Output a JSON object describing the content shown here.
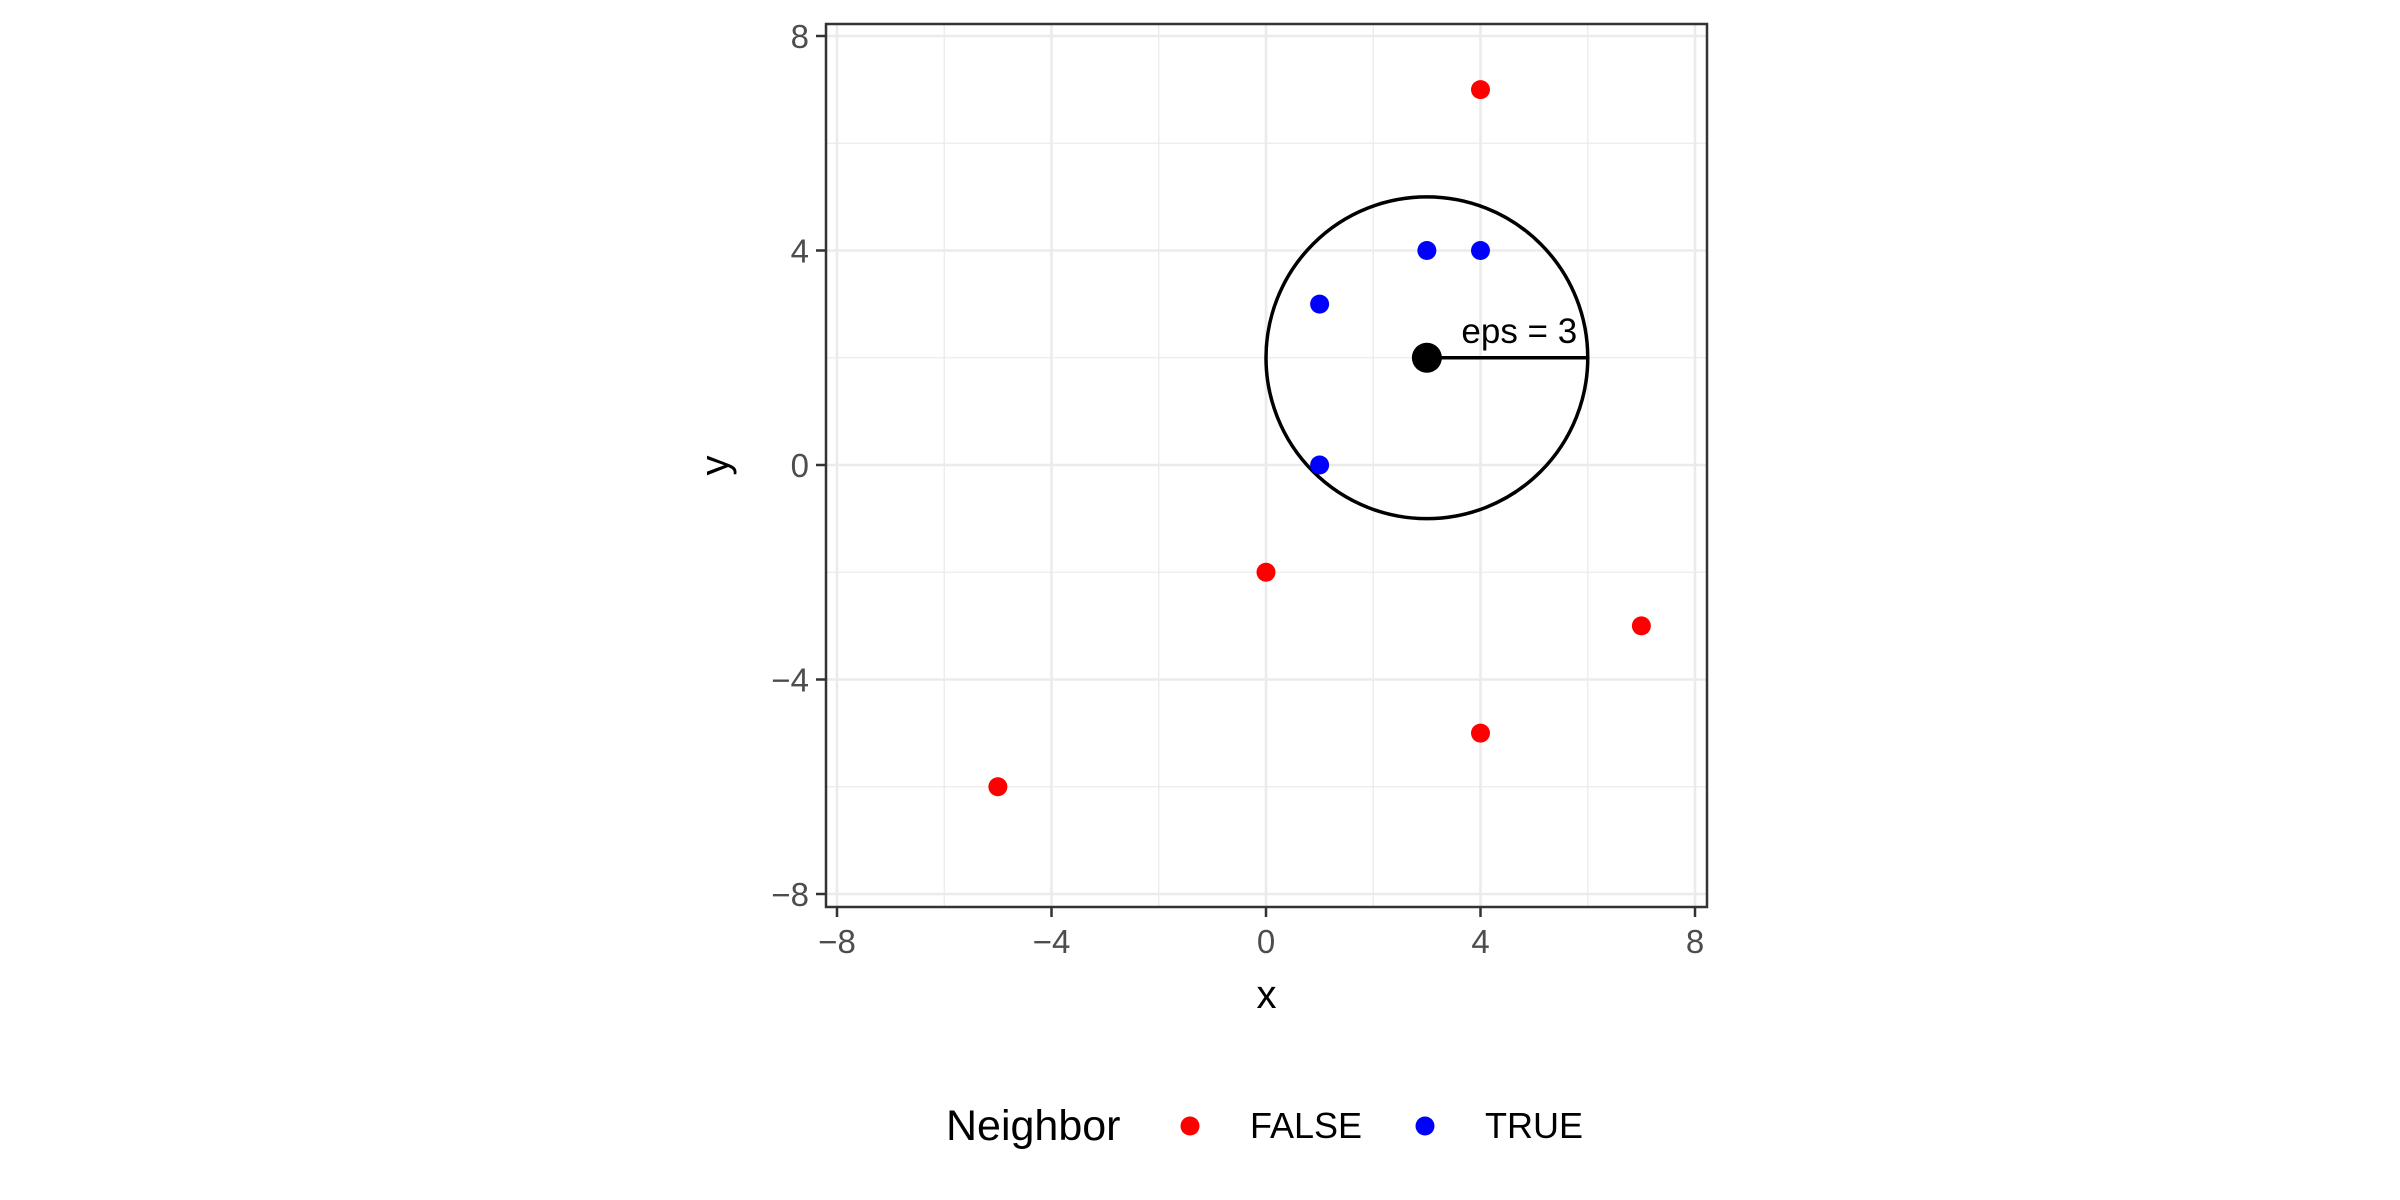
{
  "chart_data": {
    "type": "scatter",
    "xlabel": "x",
    "ylabel": "y",
    "xlim": [
      -8,
      8
    ],
    "ylim": [
      -8,
      8
    ],
    "x_ticks": [
      -8,
      -4,
      0,
      4,
      8
    ],
    "y_ticks": [
      -8,
      -4,
      0,
      4,
      8
    ],
    "x_tick_labels": [
      "−8",
      "−4",
      "0",
      "4",
      "8"
    ],
    "y_tick_labels": [
      "−8",
      "−4",
      "0",
      "4",
      "8"
    ],
    "grid": true,
    "legend": {
      "title": "Neighbor",
      "placement": "bottom",
      "entries": [
        {
          "label": "FALSE",
          "color": "#ff0000"
        },
        {
          "label": "TRUE",
          "color": "#0000ff"
        }
      ]
    },
    "series": [
      {
        "name": "FALSE",
        "color": "#ff0000",
        "points": [
          {
            "x": 4,
            "y": 7
          },
          {
            "x": 0,
            "y": -2
          },
          {
            "x": 7,
            "y": -3
          },
          {
            "x": 4,
            "y": -5
          },
          {
            "x": -5,
            "y": -6
          }
        ]
      },
      {
        "name": "TRUE",
        "color": "#0000ff",
        "points": [
          {
            "x": 3,
            "y": 4
          },
          {
            "x": 4,
            "y": 4
          },
          {
            "x": 1,
            "y": 3
          },
          {
            "x": 1,
            "y": 0
          }
        ]
      }
    ],
    "annotations": {
      "center": {
        "x": 3,
        "y": 2
      },
      "radius": 3,
      "label": "eps = 3"
    }
  }
}
